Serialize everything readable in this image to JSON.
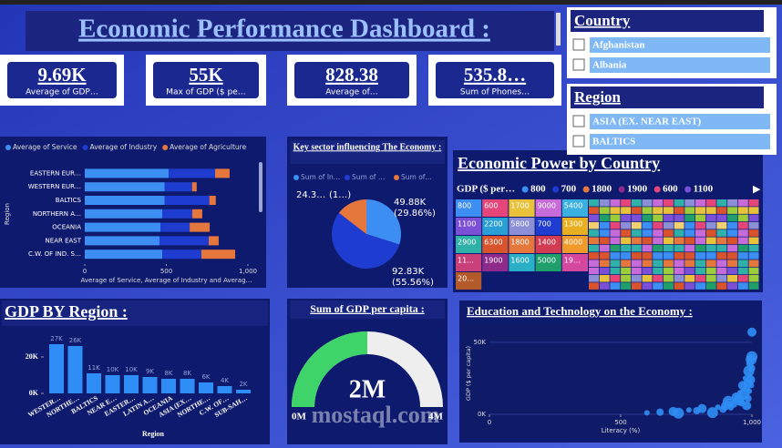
{
  "title": "Economic Performance Dashboard :",
  "kpis": [
    {
      "value": "9.69K",
      "label": "Average of GDP…"
    },
    {
      "value": "55K",
      "label": "Max of GDP ($ pe…"
    },
    {
      "value": "828.38",
      "label": "Average of…"
    },
    {
      "value": "535.8…",
      "label": "Sum of Phones…"
    }
  ],
  "slicers": [
    {
      "title": "Country",
      "items": [
        "Afghanistan",
        "Albania"
      ]
    },
    {
      "title": "Region",
      "items": [
        "ASIA (EX. NEAR EAST)",
        "BALTICS"
      ]
    }
  ],
  "watermark": "mostaql.com",
  "chart_data": [
    {
      "type": "hbar",
      "categories": [
        "EASTERN EUR…",
        "WESTERN EUR…",
        "BALTICS",
        "NORTHERN A…",
        "OCEANIA",
        "NEAR EAST",
        "C.W. OF IND. S…"
      ],
      "series": [
        {
          "name": "Average of Service",
          "color": "#3d8ef2",
          "values": [
            514,
            490,
            490,
            475,
            464,
            458,
            475
          ]
        },
        {
          "name": "Average of Industry",
          "color": "#1e3ccf",
          "values": [
            285,
            168,
            274,
            184,
            179,
            302,
            240
          ]
        },
        {
          "name": "Average of Agriculture",
          "color": "#e5773d",
          "values": [
            89,
            28,
            39,
            61,
            123,
            61,
            207
          ]
        }
      ],
      "y_label": "Region",
      "x_label": "Average of Service, Average of Industry and Averag…",
      "xlim": [
        0,
        1000
      ],
      "xticks": [
        0,
        500,
        {
          "value": 1000,
          "label": "1,000"
        }
      ],
      "legend": "top"
    },
    {
      "type": "pie",
      "title": "Key sector influencing The Economy :",
      "categories": [
        "Sum of In…",
        "Sum of …",
        "Sum of…"
      ],
      "colors": [
        "#3d8ef2",
        "#1e3ccf",
        "#e5773d"
      ],
      "values": [
        49880,
        92830,
        24300
      ],
      "value_labels": [
        [
          "49.88K",
          "(29.86%)"
        ],
        [
          "92.83K",
          "(55.56%)"
        ],
        [
          "24.3…",
          "(1…)"
        ]
      ]
    },
    {
      "type": "treemap",
      "title": "Economic Power by Country",
      "legend_title": "GDP ($ per…",
      "legend_items": [
        {
          "name": 800,
          "color": "#3d8ef2"
        },
        {
          "name": 700,
          "color": "#1e3ccf"
        },
        {
          "name": 1800,
          "color": "#e5773d"
        },
        {
          "name": 1900,
          "color": "#8e2a8a"
        },
        {
          "name": 600,
          "color": "#e6457a"
        },
        {
          "name": 1100,
          "color": "#7b4fd6"
        }
      ],
      "cells": [
        {
          "label": "800",
          "color": "#3d8ef2"
        },
        {
          "label": "600",
          "color": "#e6457a"
        },
        {
          "label": "1700",
          "color": "#e8c23a"
        },
        {
          "label": "9000",
          "color": "#c76bd9"
        },
        {
          "label": "5400",
          "color": "#3ab0e0"
        },
        {
          "label": "1100",
          "color": "#7b4fd6"
        },
        {
          "label": "2200",
          "color": "#2a9fd6"
        },
        {
          "label": "5800",
          "color": "#8a8fd6"
        },
        {
          "label": "700",
          "color": "#1e3ccf"
        },
        {
          "label": "1300",
          "color": "#e8b020"
        },
        {
          "label": "2900",
          "color": "#2fb0a8"
        },
        {
          "label": "6300",
          "color": "#d9542c"
        },
        {
          "label": "1800",
          "color": "#e5773d"
        },
        {
          "label": "1400",
          "color": "#d13c52"
        },
        {
          "label": "4000",
          "color": "#f09a2a"
        },
        {
          "label": "11…",
          "color": "#c93f7a"
        },
        {
          "label": "1900",
          "color": "#8e2a8a"
        },
        {
          "label": "1600",
          "color": "#2ab0c6"
        },
        {
          "label": "5000",
          "color": "#1fa06a"
        },
        {
          "label": "19…",
          "color": "#d6479e"
        },
        {
          "label": "20…",
          "color": "#b35a2a"
        }
      ]
    },
    {
      "type": "bar",
      "title": "GDP BY Region :",
      "categories": [
        "WESTER…",
        "NORTHE…",
        "BALTICS",
        "NEAR E…",
        "EASTER…",
        "LATIN A…",
        "OCEANIA",
        "ASIA (EX…",
        "NORTHE…",
        "C.W. OF…",
        "SUB-SAH…"
      ],
      "values": [
        27000,
        26000,
        11000,
        10000,
        10000,
        9000,
        8000,
        8000,
        6000,
        4000,
        2000
      ],
      "value_labels": [
        "27K",
        "26K",
        "11K",
        "10K",
        "10K",
        "9K",
        "8K",
        "8K",
        "6K",
        "4K",
        "2K"
      ],
      "color": "#2f8ef5",
      "x_label": "Region",
      "ylim": [
        0,
        30000
      ],
      "yticks": [
        {
          "value": 0,
          "label": "0K"
        },
        {
          "value": 20000,
          "label": "20K"
        }
      ]
    },
    {
      "type": "gauge",
      "title": "Sum of GDP per capita :",
      "value": 2000000,
      "value_label": "2M",
      "min": 0,
      "min_label": "0M",
      "max": 4000000,
      "max_label": "4M",
      "color": "#3ed46a"
    },
    {
      "type": "scatter",
      "title": "Education and Technology on the Economy :",
      "x_label": "Literacy (%)",
      "y_label": "GDP ($ per capita)",
      "color": "#2f8ef5",
      "x": [
        600,
        650,
        700,
        720,
        760,
        790,
        810,
        850,
        870,
        890,
        900,
        910,
        920,
        930,
        940,
        950,
        955,
        960,
        965,
        970,
        975,
        980,
        985,
        988,
        990,
        992,
        995,
        997,
        998,
        999,
        1000,
        1000,
        990,
        985,
        980
      ],
      "y": [
        1000,
        1500,
        2000,
        800,
        3000,
        2500,
        4000,
        1200,
        5000,
        3500,
        6000,
        9000,
        4500,
        7000,
        12000,
        10000,
        15000,
        8000,
        20000,
        14000,
        25000,
        18000,
        22000,
        30000,
        27000,
        35000,
        24000,
        38000,
        20000,
        32000,
        57000,
        40000,
        16000,
        11000,
        6000
      ],
      "xlim": [
        0,
        1000
      ],
      "xticks": [
        0,
        500,
        {
          "value": 1000,
          "label": "1,000"
        }
      ],
      "ylim": [
        0,
        60000
      ],
      "yticks": [
        {
          "value": 0,
          "label": "0K"
        },
        {
          "value": 50000,
          "label": "50K"
        }
      ]
    }
  ]
}
